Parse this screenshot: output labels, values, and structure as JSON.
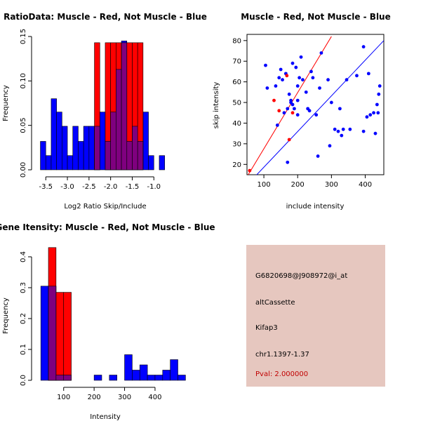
{
  "colors": {
    "red": "#ff0000",
    "blue": "#0000ff",
    "overlap": "#7f007f",
    "panel": "#e6c7bf",
    "pval": "#c00000"
  },
  "chart_data": [
    {
      "id": "hist1",
      "type": "bar",
      "title": "RatioData: Muscle - Red, Not Muscle - Blue",
      "xlabel": "Log2 Ratio Skip/Include",
      "ylabel": "Frequency",
      "xlim": [
        -3.65,
        -0.55
      ],
      "ylim": [
        0,
        0.15
      ],
      "xticks": [
        -3.5,
        -3.0,
        -2.5,
        -2.0,
        -1.5,
        -1.0
      ],
      "xtick_labels": [
        "-3.5",
        "-3.0",
        "-2.5",
        "-2.0",
        "-1.5",
        "-1.0"
      ],
      "yticks": [
        0,
        0.05,
        0.1,
        0.15
      ],
      "ytick_labels": [
        "0.00",
        "0.05",
        "0.10",
        "0.15"
      ],
      "bin_width": 0.125,
      "series": [
        {
          "name": "Not Muscle",
          "color": "blue",
          "bins": [
            [
              -3.625,
              0.032
            ],
            [
              -3.5,
              0.016
            ],
            [
              -3.375,
              0.08
            ],
            [
              -3.25,
              0.065
            ],
            [
              -3.125,
              0.049
            ],
            [
              -3.0,
              0.016
            ],
            [
              -2.875,
              0.049
            ],
            [
              -2.75,
              0.032
            ],
            [
              -2.625,
              0.049
            ],
            [
              -2.5,
              0.049
            ],
            [
              -2.375,
              0.049
            ],
            [
              -2.25,
              0.065
            ],
            [
              -2.125,
              0.032
            ],
            [
              -2.0,
              0.065
            ],
            [
              -1.875,
              0.113
            ],
            [
              -1.75,
              0.145
            ],
            [
              -1.625,
              0.032
            ],
            [
              -1.5,
              0.049
            ],
            [
              -1.375,
              0.032
            ],
            [
              -1.25,
              0.065
            ],
            [
              -1.125,
              0.016
            ],
            [
              -0.875,
              0.016
            ]
          ]
        },
        {
          "name": "Muscle",
          "color": "red",
          "bins": [
            [
              -2.375,
              0.143
            ],
            [
              -2.125,
              0.143
            ],
            [
              -2.0,
              0.143
            ],
            [
              -1.875,
              0.143
            ],
            [
              -1.75,
              0.143
            ],
            [
              -1.625,
              0.143
            ],
            [
              -1.5,
              0.143
            ],
            [
              -1.375,
              0.143
            ]
          ]
        }
      ]
    },
    {
      "id": "scatter",
      "type": "scatter",
      "title": "Muscle - Red, Not Muscle - Blue",
      "xlabel": "include intensity",
      "ylabel": "skip intensity",
      "xlim": [
        50,
        455
      ],
      "ylim": [
        15,
        83
      ],
      "xticks": [
        100,
        200,
        300,
        400
      ],
      "xtick_labels": [
        "100",
        "200",
        "300",
        "400"
      ],
      "yticks": [
        20,
        30,
        40,
        50,
        60,
        70,
        80
      ],
      "ytick_labels": [
        "20",
        "30",
        "40",
        "50",
        "60",
        "70",
        "80"
      ],
      "series": [
        {
          "name": "Not Muscle",
          "color": "blue",
          "x": [
            105,
            110,
            135,
            140,
            145,
            150,
            155,
            160,
            165,
            170,
            175,
            180,
            180,
            185,
            185,
            190,
            195,
            200,
            200,
            205,
            210,
            215,
            225,
            230,
            240,
            245,
            255,
            260,
            265,
            270,
            290,
            295,
            300,
            310,
            320,
            325,
            330,
            335,
            345,
            355,
            375,
            395,
            395,
            405,
            410,
            415,
            425,
            430,
            435,
            438,
            440,
            443,
            170,
            200,
            235
          ],
          "y": [
            68,
            57,
            58,
            39,
            62,
            66,
            61,
            45,
            64,
            21,
            54,
            50,
            51,
            69,
            49,
            47,
            67,
            58,
            44,
            62,
            72,
            61,
            55,
            47,
            65,
            62,
            44,
            24,
            57,
            74,
            61,
            29,
            50,
            37,
            36,
            47,
            34,
            37,
            61,
            37,
            63,
            77,
            36,
            43,
            64,
            44,
            45,
            35,
            49,
            45,
            54,
            58,
            47,
            51,
            46
          ]
        },
        {
          "name": "Muscle",
          "color": "red",
          "x": [
            58,
            130,
            145,
            168,
            175,
            185
          ],
          "y": [
            17,
            51,
            46,
            63,
            32,
            45
          ]
        }
      ],
      "fit_lines": [
        {
          "color": "red",
          "x": [
            50,
            300
          ],
          "y": [
            14,
            82
          ]
        },
        {
          "color": "blue",
          "x": [
            50,
            455
          ],
          "y": [
            10,
            80
          ]
        }
      ]
    },
    {
      "id": "hist2",
      "type": "bar",
      "title": "Gene Itensity: Muscle - Red, Not Muscle - Blue",
      "xlabel": "Intensity",
      "ylabel": "Frequency",
      "xlim": [
        20,
        460
      ],
      "ylim": [
        0,
        0.45
      ],
      "xticks": [
        100,
        200,
        300,
        400
      ],
      "xtick_labels": [
        "100",
        "200",
        "300",
        "400"
      ],
      "yticks": [
        0,
        0.1,
        0.2,
        0.3,
        0.4
      ],
      "ytick_labels": [
        "0.0",
        "0.1",
        "0.2",
        "0.3",
        "0.4"
      ],
      "bin_width": 25,
      "series": [
        {
          "name": "Not Muscle",
          "color": "blue",
          "bins": [
            [
              25,
              0.305
            ],
            [
              50,
              0.305
            ],
            [
              75,
              0.017
            ],
            [
              100,
              0.017
            ],
            [
              125,
              0
            ],
            [
              150,
              0
            ],
            [
              175,
              0
            ],
            [
              200,
              0.017
            ],
            [
              225,
              0
            ],
            [
              250,
              0.017
            ],
            [
              275,
              0
            ],
            [
              300,
              0.083
            ],
            [
              325,
              0.033
            ],
            [
              350,
              0.05
            ],
            [
              375,
              0.017
            ],
            [
              400,
              0.017
            ],
            [
              425,
              0.033
            ],
            [
              450,
              0.067
            ],
            [
              475,
              0.017
            ]
          ]
        },
        {
          "name": "Muscle",
          "color": "red",
          "bins": [
            [
              50,
              0.43
            ],
            [
              75,
              0.285
            ],
            [
              100,
              0.285
            ]
          ]
        }
      ]
    }
  ],
  "info": {
    "probe": "G6820698@J908972@i_at",
    "event": "altCassette",
    "gene": "Kifap3",
    "location": "chr1.1397-1.37",
    "pval": "Pval: 2.000000"
  }
}
